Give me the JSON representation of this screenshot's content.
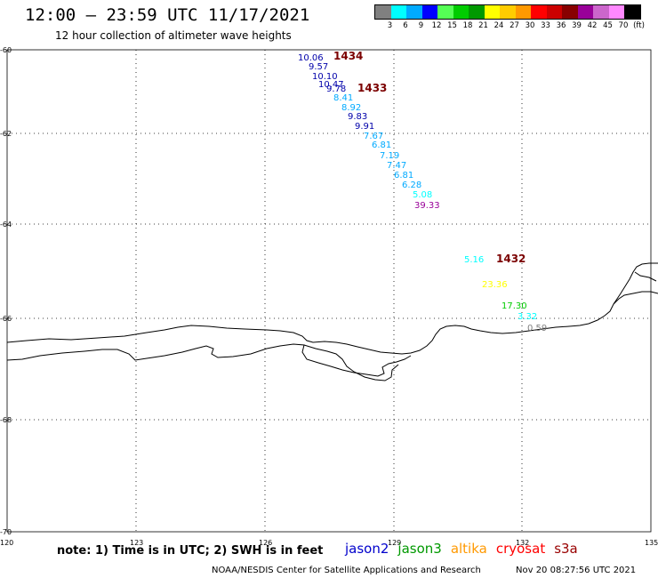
{
  "header": {
    "title": "12:00 – 23:59 UTC 11/17/2021",
    "subtitle": "12 hour collection of altimeter wave heights"
  },
  "legend": {
    "labels": [
      "3",
      "6",
      "9",
      "12",
      "15",
      "18",
      "21",
      "24",
      "27",
      "30",
      "33",
      "36",
      "39",
      "42",
      "45",
      "70",
      "(ft)"
    ],
    "colors": [
      "#808080",
      "#00ffff",
      "#00aaff",
      "#0000ff",
      "#55ff55",
      "#00cc00",
      "#009900",
      "#ffff00",
      "#ffcc00",
      "#ff9900",
      "#ff0000",
      "#cc0000",
      "#880000",
      "#990099",
      "#cc66cc",
      "#ff88ff",
      "#000000"
    ]
  },
  "axes": {
    "lat_labels": [
      "-60",
      "-62",
      "-64",
      "-66",
      "-68",
      "-70"
    ],
    "lon_labels": [
      "120",
      "123",
      "126",
      "129",
      "132",
      "135"
    ]
  },
  "passes": [
    {
      "label": "1434"
    },
    {
      "label": "1433"
    },
    {
      "label": "1432"
    }
  ],
  "observations": [
    {
      "value": "10.06",
      "color": "#0000aa"
    },
    {
      "value": "9.57",
      "color": "#0000aa"
    },
    {
      "value": "10.10",
      "color": "#0000aa"
    },
    {
      "value": "10.47",
      "color": "#0000aa"
    },
    {
      "value": "9.78",
      "color": "#0000aa"
    },
    {
      "value": "8.41",
      "color": "#00aaff"
    },
    {
      "value": "8.92",
      "color": "#00aaff"
    },
    {
      "value": "9.83",
      "color": "#0000aa"
    },
    {
      "value": "9.91",
      "color": "#0000aa"
    },
    {
      "value": "7.67",
      "color": "#00aaff"
    },
    {
      "value": "6.81",
      "color": "#00aaff"
    },
    {
      "value": "7.19",
      "color": "#00aaff"
    },
    {
      "value": "7.47",
      "color": "#00aaff"
    },
    {
      "value": "6.81",
      "color": "#00aaff"
    },
    {
      "value": "6.28",
      "color": "#00aaff"
    },
    {
      "value": "5.08",
      "color": "#00ffff"
    },
    {
      "value": "39.33",
      "color": "#990099"
    },
    {
      "value": "5.16",
      "color": "#00ffff"
    },
    {
      "value": "23.36",
      "color": "#ffff00"
    },
    {
      "value": "17.30",
      "color": "#00cc00"
    },
    {
      "value": "3.32",
      "color": "#00ffff"
    },
    {
      "value": "0.59",
      "color": "#808080"
    }
  ],
  "footer": {
    "note": "note: 1) Time is in UTC; 2) SWH is in feet",
    "satellites": [
      {
        "name": "jason2",
        "color": "#0000cc"
      },
      {
        "name": "jason3",
        "color": "#009900"
      },
      {
        "name": "altika",
        "color": "#ff9900"
      },
      {
        "name": "cryosat",
        "color": "#ff0000"
      },
      {
        "name": "s3a",
        "color": "#990000"
      }
    ],
    "credit": "NOAA/NESDIS Center for Satellite Applications and Research",
    "timestamp": "Nov 20 08:27:56 UTC 2021"
  }
}
